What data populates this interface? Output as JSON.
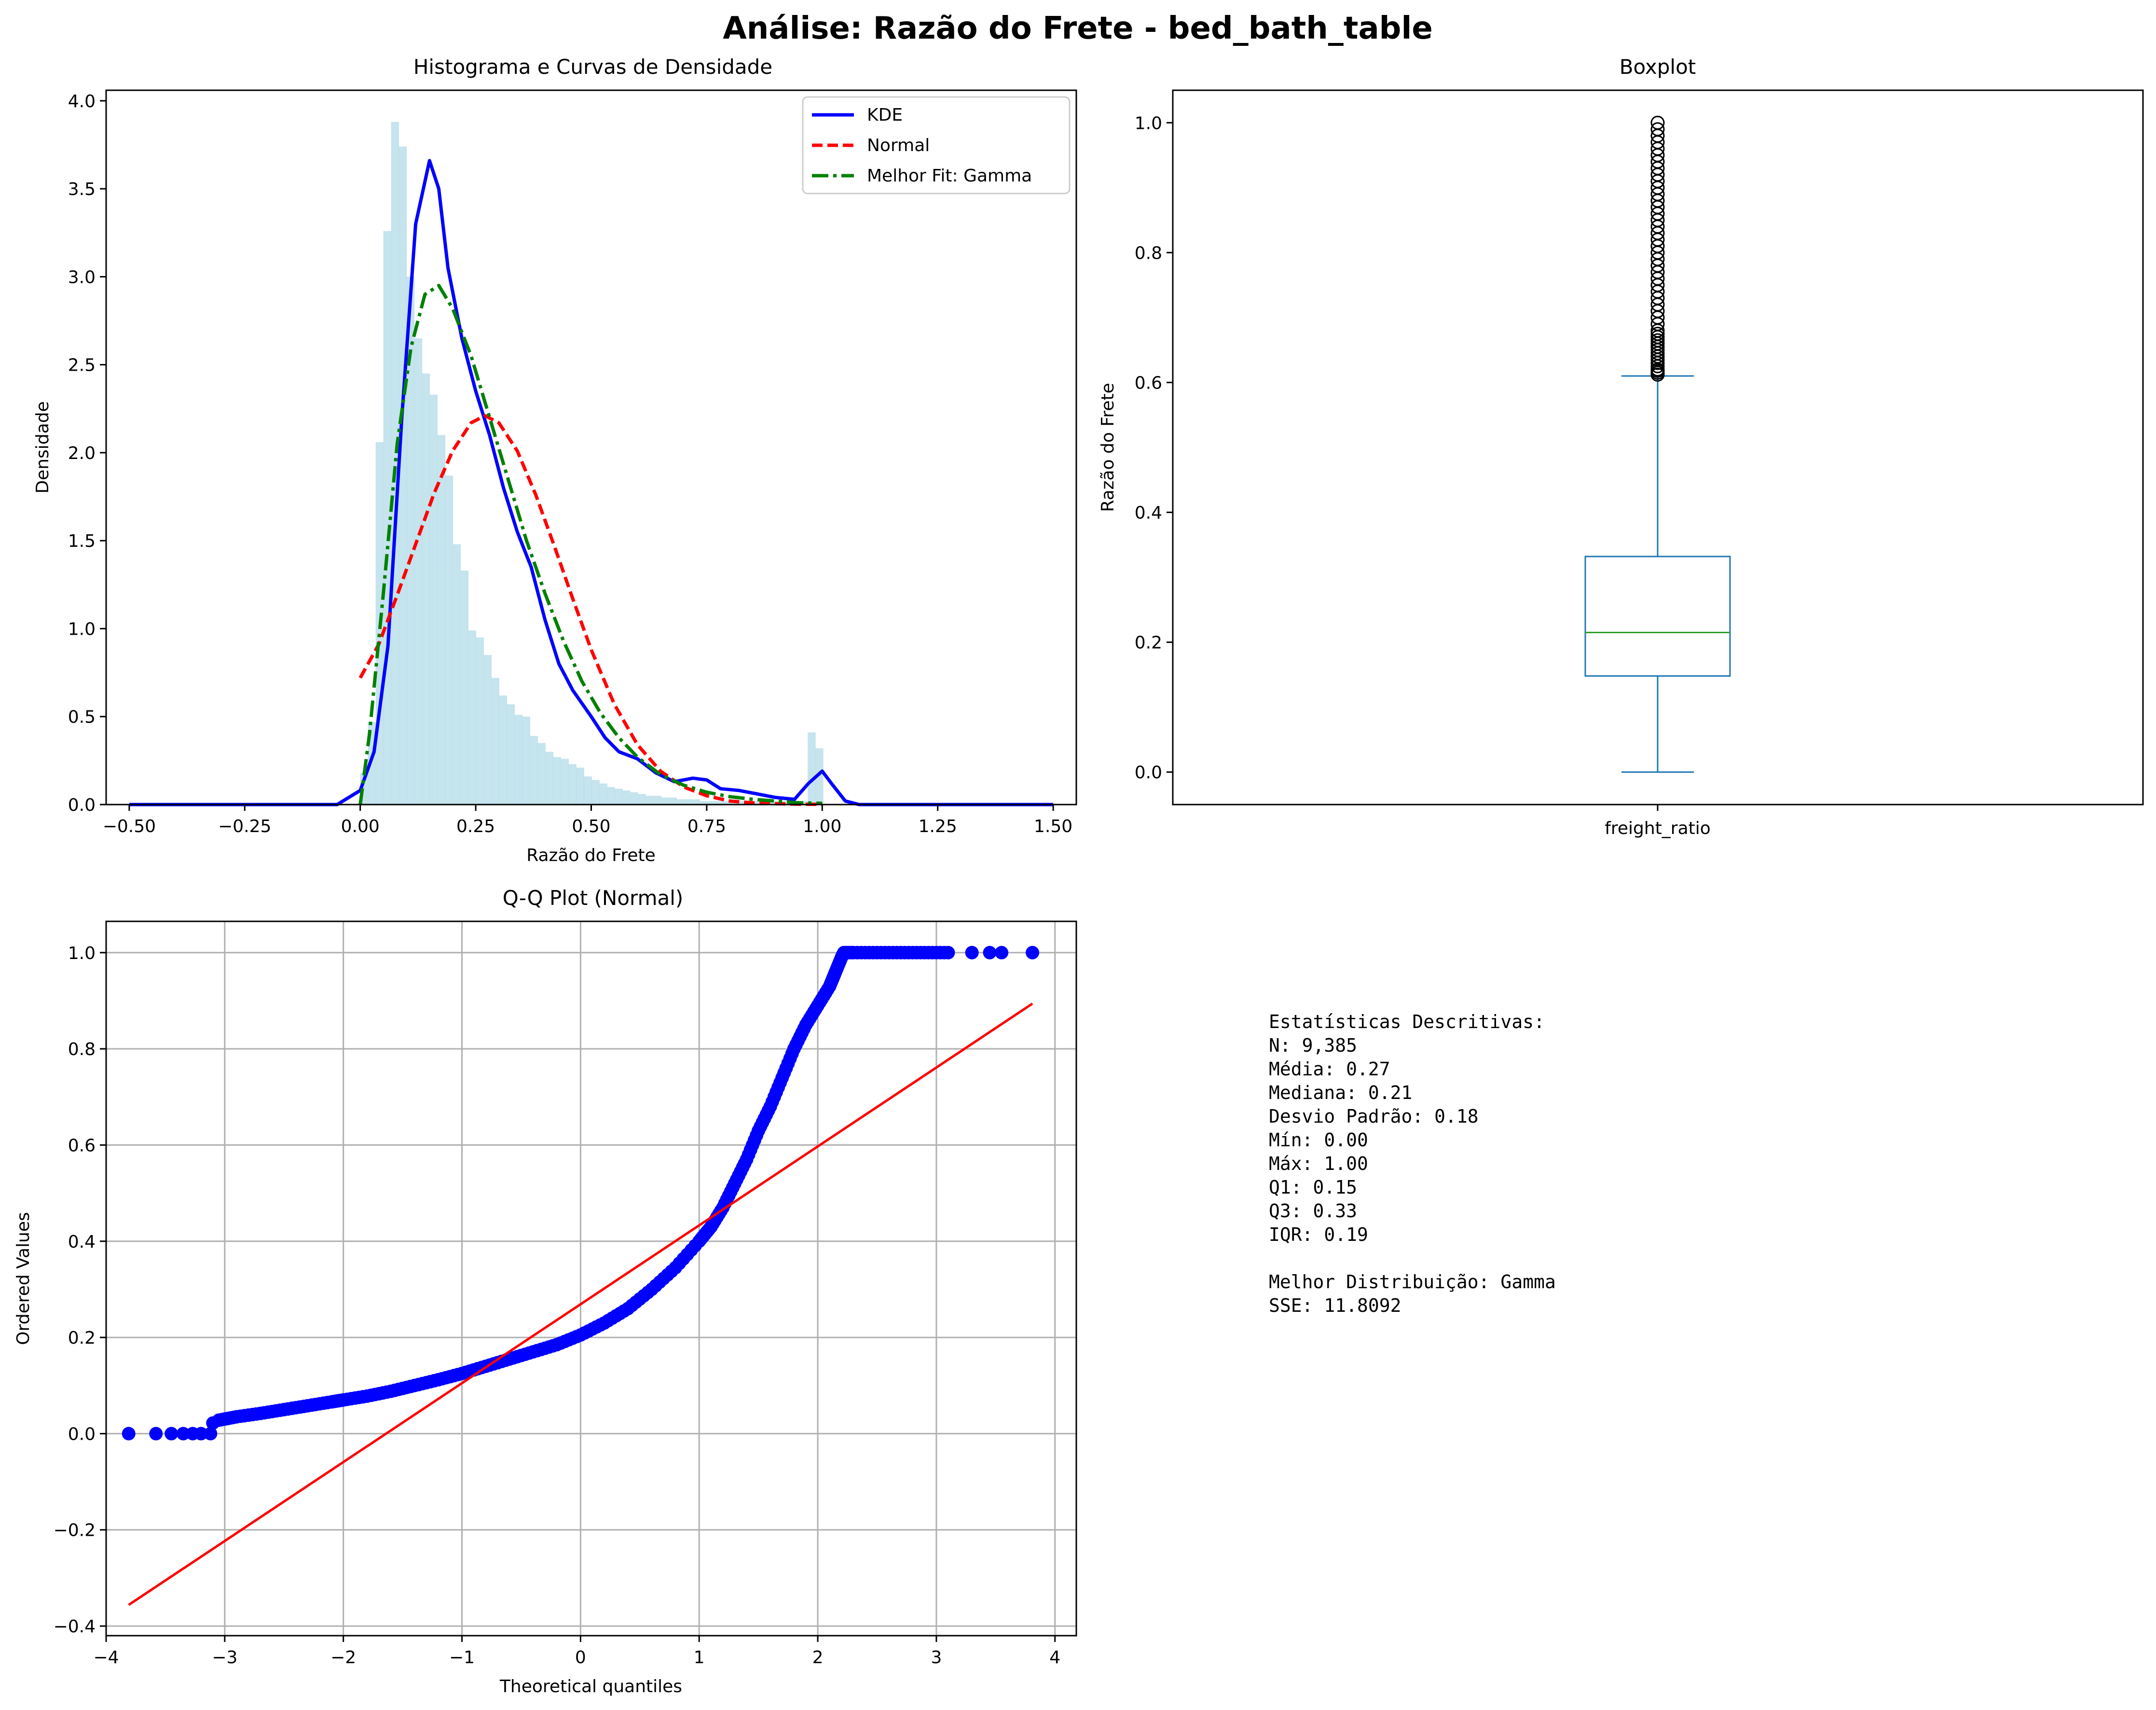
{
  "figure": {
    "title": "Análise: Razão do Frete - bed_bath_table"
  },
  "colors": {
    "hist": "#add8e6",
    "kde": "#0000ff",
    "normal": "#ff0000",
    "gamma": "#008000",
    "box": "#1f77b4",
    "median": "#2ca02c",
    "qq_points": "#0000ff",
    "qq_line": "#ff0000",
    "grid": "#b0b0b0"
  },
  "chart_data": [
    {
      "type": "histogram",
      "title": "Histograma e Curvas de Densidade",
      "xlabel": "Razão do Frete",
      "ylabel": "Densidade",
      "xlim": [
        -0.55,
        1.55
      ],
      "ylim": [
        0,
        4.06
      ],
      "xticks": [
        -0.5,
        -0.25,
        0.0,
        0.25,
        0.5,
        0.75,
        1.0,
        1.25,
        1.5
      ],
      "xtick_labels": [
        "−0.50",
        "−0.25",
        "0.00",
        "0.25",
        "0.50",
        "0.75",
        "1.00",
        "1.25",
        "1.50"
      ],
      "yticks": [
        0.0,
        0.5,
        1.0,
        1.5,
        2.0,
        2.5,
        3.0,
        3.5,
        4.0
      ],
      "ytick_labels": [
        "0.0",
        "0.5",
        "1.0",
        "1.5",
        "2.0",
        "2.5",
        "3.0",
        "3.5",
        "4.0"
      ],
      "grid": false,
      "legend_position": "top-right",
      "histogram": {
        "bin_start": 0.0,
        "bin_width": 0.0167,
        "density": [
          0.18,
          0.47,
          2.06,
          3.26,
          3.88,
          3.74,
          3.0,
          2.65,
          2.45,
          2.33,
          2.1,
          1.87,
          1.48,
          1.33,
          0.99,
          0.95,
          0.85,
          0.72,
          0.62,
          0.57,
          0.51,
          0.5,
          0.39,
          0.35,
          0.3,
          0.27,
          0.26,
          0.23,
          0.21,
          0.16,
          0.14,
          0.12,
          0.1,
          0.09,
          0.08,
          0.07,
          0.06,
          0.05,
          0.05,
          0.04,
          0.04,
          0.03,
          0.03,
          0.03,
          0.02,
          0.02,
          0.02,
          0.02,
          0.02,
          0.02,
          0.02,
          0.02,
          0.02,
          0.02,
          0.02,
          0.02,
          0.02,
          0.02,
          0.41,
          0.32
        ]
      },
      "series": [
        {
          "name": "KDE",
          "style": "solid",
          "x": [
            -0.5,
            -0.2,
            -0.05,
            0.0,
            0.03,
            0.06,
            0.09,
            0.12,
            0.15,
            0.17,
            0.19,
            0.22,
            0.25,
            0.28,
            0.31,
            0.34,
            0.37,
            0.4,
            0.43,
            0.46,
            0.5,
            0.53,
            0.56,
            0.6,
            0.64,
            0.68,
            0.72,
            0.75,
            0.78,
            0.82,
            0.86,
            0.9,
            0.94,
            0.97,
            1.0,
            1.02,
            1.05,
            1.08,
            1.15,
            1.5
          ],
          "y": [
            0.0,
            0.0,
            0.0,
            0.08,
            0.3,
            0.9,
            2.2,
            3.3,
            3.66,
            3.5,
            3.05,
            2.65,
            2.35,
            2.1,
            1.8,
            1.55,
            1.35,
            1.05,
            0.8,
            0.65,
            0.5,
            0.38,
            0.3,
            0.26,
            0.18,
            0.13,
            0.15,
            0.14,
            0.09,
            0.08,
            0.06,
            0.04,
            0.03,
            0.12,
            0.19,
            0.12,
            0.02,
            0.0,
            0.0,
            0.0
          ]
        },
        {
          "name": "Normal",
          "style": "dashed",
          "x": [
            0.0,
            0.04,
            0.08,
            0.12,
            0.16,
            0.2,
            0.24,
            0.27,
            0.3,
            0.34,
            0.38,
            0.42,
            0.46,
            0.5,
            0.55,
            0.6,
            0.65,
            0.7,
            0.75,
            0.8,
            0.85,
            0.9,
            0.95,
            1.0
          ],
          "y": [
            0.72,
            0.91,
            1.19,
            1.48,
            1.77,
            2.01,
            2.17,
            2.21,
            2.17,
            2.01,
            1.76,
            1.47,
            1.17,
            0.88,
            0.57,
            0.34,
            0.19,
            0.1,
            0.05,
            0.02,
            0.01,
            0.005,
            0.002,
            0.001
          ]
        },
        {
          "name": "Melhor Fit: Gamma",
          "style": "dashdot",
          "x": [
            0.0,
            0.02,
            0.05,
            0.08,
            0.11,
            0.14,
            0.17,
            0.2,
            0.24,
            0.28,
            0.32,
            0.36,
            0.4,
            0.44,
            0.48,
            0.52,
            0.56,
            0.6,
            0.65,
            0.7,
            0.75,
            0.8,
            0.85,
            0.9,
            0.95,
            1.0
          ],
          "y": [
            0.0,
            0.4,
            1.2,
            2.05,
            2.6,
            2.9,
            2.95,
            2.82,
            2.55,
            2.2,
            1.85,
            1.5,
            1.2,
            0.93,
            0.7,
            0.52,
            0.38,
            0.27,
            0.17,
            0.11,
            0.07,
            0.045,
            0.03,
            0.02,
            0.01,
            0.007
          ]
        }
      ]
    },
    {
      "type": "boxplot",
      "title": "Boxplot",
      "xlabel": "",
      "ylabel": "Razão do Frete",
      "category": "freight_ratio",
      "ylim": [
        -0.05,
        1.05
      ],
      "yticks": [
        0.0,
        0.2,
        0.4,
        0.6,
        0.8,
        1.0
      ],
      "ytick_labels": [
        "0.0",
        "0.2",
        "0.4",
        "0.6",
        "0.8",
        "1.0"
      ],
      "grid": false,
      "whisker_low": 0.0,
      "q1": 0.148,
      "median": 0.215,
      "q3": 0.332,
      "whisker_high": 0.61,
      "outliers": [
        0.612,
        0.615,
        0.618,
        0.62,
        0.625,
        0.63,
        0.635,
        0.64,
        0.645,
        0.65,
        0.655,
        0.66,
        0.665,
        0.67,
        0.675,
        0.68,
        0.69,
        0.7,
        0.71,
        0.72,
        0.73,
        0.74,
        0.75,
        0.76,
        0.77,
        0.78,
        0.79,
        0.8,
        0.81,
        0.82,
        0.83,
        0.84,
        0.85,
        0.86,
        0.87,
        0.88,
        0.89,
        0.9,
        0.91,
        0.92,
        0.93,
        0.94,
        0.95,
        0.96,
        0.97,
        0.98,
        0.99,
        1.0
      ]
    },
    {
      "type": "scatter",
      "title": "Q-Q Plot (Normal)",
      "xlabel": "Theoretical quantiles",
      "ylabel": "Ordered Values",
      "xlim": [
        -4.0,
        4.18
      ],
      "ylim": [
        -0.42,
        1.065
      ],
      "xticks": [
        -4,
        -3,
        -2,
        -1,
        0,
        1,
        2,
        3,
        4
      ],
      "xtick_labels": [
        "−4",
        "−3",
        "−2",
        "−1",
        "0",
        "1",
        "2",
        "3",
        "4"
      ],
      "yticks": [
        -0.4,
        -0.2,
        0.0,
        0.2,
        0.4,
        0.6,
        0.8,
        1.0
      ],
      "ytick_labels": [
        "−0.4",
        "−0.2",
        "0.0",
        "0.2",
        "0.4",
        "0.6",
        "0.8",
        "1.0"
      ],
      "grid": true,
      "points_curve": {
        "x": [
          -3.81,
          -3.58,
          -3.45,
          -3.35,
          -3.27,
          -3.2,
          -3.12,
          -3.1,
          -3.05,
          -2.9,
          -2.7,
          -2.5,
          -2.3,
          -2.1,
          -2.0,
          -1.8,
          -1.6,
          -1.4,
          -1.2,
          -1.0,
          -0.8,
          -0.6,
          -0.4,
          -0.2,
          0.0,
          0.2,
          0.4,
          0.6,
          0.8,
          1.0,
          1.1,
          1.2,
          1.3,
          1.4,
          1.5,
          1.6,
          1.7,
          1.8,
          1.9,
          2.0,
          2.1,
          2.15,
          2.2,
          2.22,
          2.3,
          2.5,
          2.7,
          2.9,
          3.1,
          3.3,
          3.45,
          3.55,
          3.81
        ],
        "y": [
          0.0,
          0.0,
          0.0,
          0.0,
          0.0,
          0.0,
          0.0,
          0.022,
          0.028,
          0.035,
          0.042,
          0.05,
          0.058,
          0.066,
          0.07,
          0.078,
          0.088,
          0.1,
          0.112,
          0.125,
          0.14,
          0.155,
          0.17,
          0.185,
          0.205,
          0.23,
          0.26,
          0.3,
          0.345,
          0.4,
          0.43,
          0.47,
          0.52,
          0.57,
          0.63,
          0.68,
          0.74,
          0.8,
          0.85,
          0.89,
          0.93,
          0.96,
          0.99,
          1.0,
          1.0,
          1.0,
          1.0,
          1.0,
          1.0,
          1.0,
          1.0,
          1.0,
          1.0
        ]
      },
      "reference_line": {
        "x": [
          -3.81,
          3.81
        ],
        "y": [
          -0.356,
          0.894
        ]
      }
    }
  ],
  "stats_box": {
    "lines": [
      "Estatísticas Descritivas:",
      "N: 9,385",
      "Média: 0.27",
      "Mediana: 0.21",
      "Desvio Padrão: 0.18",
      "Mín: 0.00",
      "Máx: 1.00",
      "Q1: 0.15",
      "Q3: 0.33",
      "IQR: 0.19",
      "",
      "Melhor Distribuição: Gamma",
      "SSE: 11.8092"
    ]
  }
}
